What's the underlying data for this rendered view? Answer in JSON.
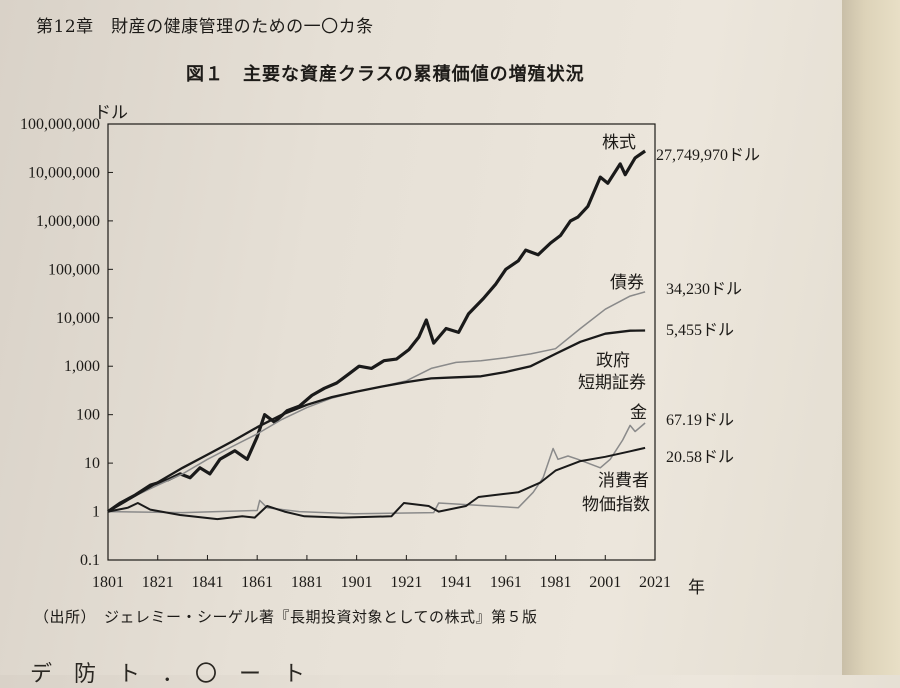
{
  "header": {
    "chapter": "第12章　財産の健康管理のための一〇カ条"
  },
  "figure": {
    "title": "図１　主要な資産クラスの累積価値の増殖状況"
  },
  "source": {
    "note": "（出所）　ジェレミー・シーゲル著『長期投資対象としての株式』第５版"
  },
  "bottom_text": "デ　防　ト　．　〇　ー　ト",
  "chart_data": {
    "type": "line",
    "y_scale": "log",
    "ylabel": "ドル",
    "xlabel_suffix": "年",
    "xlim": [
      1801,
      2021
    ],
    "ylim": [
      0.1,
      100000000
    ],
    "x_ticks": [
      "1801",
      "1821",
      "1841",
      "1861",
      "1881",
      "1901",
      "1921",
      "1941",
      "1961",
      "1981",
      "2001",
      "2021"
    ],
    "y_ticks": [
      {
        "v": 100000000,
        "label": "100,000,000"
      },
      {
        "v": 10000000,
        "label": "10,000,000"
      },
      {
        "v": 1000000,
        "label": "1,000,000"
      },
      {
        "v": 100000,
        "label": "100,000"
      },
      {
        "v": 10000,
        "label": "10,000"
      },
      {
        "v": 1000,
        "label": "1,000"
      },
      {
        "v": 100,
        "label": "100"
      },
      {
        "v": 10,
        "label": "10"
      },
      {
        "v": 1,
        "label": "1"
      },
      {
        "v": 0.1,
        "label": "0.1"
      }
    ],
    "series": [
      {
        "name": "株式",
        "end_label": "27,749,970ドル",
        "color": "#1a1a1a",
        "width": 3.2,
        "points": [
          [
            1801,
            1
          ],
          [
            1806,
            1.5
          ],
          [
            1812,
            2.2
          ],
          [
            1818,
            3.5
          ],
          [
            1825,
            4.5
          ],
          [
            1830,
            6
          ],
          [
            1834,
            5
          ],
          [
            1838,
            8
          ],
          [
            1842,
            6
          ],
          [
            1846,
            12
          ],
          [
            1852,
            18
          ],
          [
            1857,
            12
          ],
          [
            1861,
            35
          ],
          [
            1864,
            100
          ],
          [
            1868,
            70
          ],
          [
            1873,
            120
          ],
          [
            1878,
            150
          ],
          [
            1883,
            250
          ],
          [
            1888,
            350
          ],
          [
            1893,
            450
          ],
          [
            1898,
            700
          ],
          [
            1902,
            1000
          ],
          [
            1907,
            900
          ],
          [
            1912,
            1300
          ],
          [
            1917,
            1400
          ],
          [
            1922,
            2200
          ],
          [
            1926,
            4000
          ],
          [
            1929,
            9000
          ],
          [
            1932,
            3000
          ],
          [
            1937,
            6000
          ],
          [
            1942,
            5000
          ],
          [
            1946,
            12000
          ],
          [
            1952,
            25000
          ],
          [
            1957,
            50000
          ],
          [
            1961,
            100000
          ],
          [
            1966,
            150000
          ],
          [
            1969,
            250000
          ],
          [
            1974,
            200000
          ],
          [
            1979,
            350000
          ],
          [
            1983,
            500000
          ],
          [
            1987,
            1000000
          ],
          [
            1990,
            1200000
          ],
          [
            1994,
            2000000
          ],
          [
            1999,
            8000000
          ],
          [
            2002,
            6000000
          ],
          [
            2007,
            15000000
          ],
          [
            2009,
            9000000
          ],
          [
            2013,
            20000000
          ],
          [
            2017,
            27749970
          ]
        ]
      },
      {
        "name": "債券",
        "end_label": "34,230ドル",
        "color": "#8a8a8a",
        "width": 1.5,
        "points": [
          [
            1801,
            1
          ],
          [
            1811,
            2
          ],
          [
            1821,
            3.5
          ],
          [
            1831,
            6
          ],
          [
            1841,
            12
          ],
          [
            1851,
            22
          ],
          [
            1861,
            40
          ],
          [
            1871,
            80
          ],
          [
            1881,
            140
          ],
          [
            1891,
            220
          ],
          [
            1901,
            300
          ],
          [
            1911,
            380
          ],
          [
            1921,
            500
          ],
          [
            1931,
            900
          ],
          [
            1941,
            1200
          ],
          [
            1951,
            1300
          ],
          [
            1961,
            1500
          ],
          [
            1971,
            1800
          ],
          [
            1981,
            2300
          ],
          [
            1991,
            6000
          ],
          [
            2001,
            15000
          ],
          [
            2011,
            28000
          ],
          [
            2017,
            34230
          ]
        ]
      },
      {
        "name": "政府短期証券",
        "end_label": "5,455ドル",
        "color": "#1a1a1a",
        "width": 2.3,
        "points": [
          [
            1801,
            1
          ],
          [
            1811,
            2
          ],
          [
            1821,
            4
          ],
          [
            1831,
            8
          ],
          [
            1841,
            15
          ],
          [
            1851,
            28
          ],
          [
            1861,
            55
          ],
          [
            1871,
            100
          ],
          [
            1881,
            160
          ],
          [
            1891,
            230
          ],
          [
            1901,
            300
          ],
          [
            1911,
            380
          ],
          [
            1921,
            470
          ],
          [
            1931,
            560
          ],
          [
            1941,
            590
          ],
          [
            1951,
            620
          ],
          [
            1961,
            760
          ],
          [
            1971,
            1000
          ],
          [
            1981,
            1800
          ],
          [
            1991,
            3200
          ],
          [
            2001,
            4700
          ],
          [
            2011,
            5400
          ],
          [
            2017,
            5455
          ]
        ]
      },
      {
        "name": "金",
        "end_label": "67.19ドル",
        "color": "#8a8a8a",
        "width": 1.5,
        "points": [
          [
            1801,
            1
          ],
          [
            1831,
            0.95
          ],
          [
            1861,
            1.05
          ],
          [
            1862,
            1.7
          ],
          [
            1865,
            1.2
          ],
          [
            1878,
            1
          ],
          [
            1900,
            0.9
          ],
          [
            1932,
            0.95
          ],
          [
            1934,
            1.5
          ],
          [
            1966,
            1.2
          ],
          [
            1972,
            2.5
          ],
          [
            1976,
            5
          ],
          [
            1980,
            20
          ],
          [
            1982,
            12
          ],
          [
            1986,
            14
          ],
          [
            1990,
            12
          ],
          [
            1999,
            8
          ],
          [
            2003,
            12
          ],
          [
            2008,
            30
          ],
          [
            2011,
            60
          ],
          [
            2013,
            45
          ],
          [
            2017,
            67.19
          ]
        ]
      },
      {
        "name": "消費者物価指数",
        "end_label": "20.58ドル",
        "color": "#1a1a1a",
        "width": 2.0,
        "points": [
          [
            1801,
            1
          ],
          [
            1809,
            1.2
          ],
          [
            1813,
            1.5
          ],
          [
            1818,
            1.1
          ],
          [
            1830,
            0.85
          ],
          [
            1845,
            0.7
          ],
          [
            1855,
            0.8
          ],
          [
            1860,
            0.75
          ],
          [
            1865,
            1.3
          ],
          [
            1872,
            1.0
          ],
          [
            1880,
            0.8
          ],
          [
            1895,
            0.75
          ],
          [
            1915,
            0.8
          ],
          [
            1920,
            1.5
          ],
          [
            1930,
            1.3
          ],
          [
            1934,
            1.0
          ],
          [
            1945,
            1.3
          ],
          [
            1950,
            2
          ],
          [
            1960,
            2.3
          ],
          [
            1966,
            2.5
          ],
          [
            1975,
            4
          ],
          [
            1981,
            7
          ],
          [
            1991,
            11
          ],
          [
            2001,
            13.5
          ],
          [
            2011,
            17.5
          ],
          [
            2017,
            20.58
          ]
        ]
      }
    ]
  }
}
